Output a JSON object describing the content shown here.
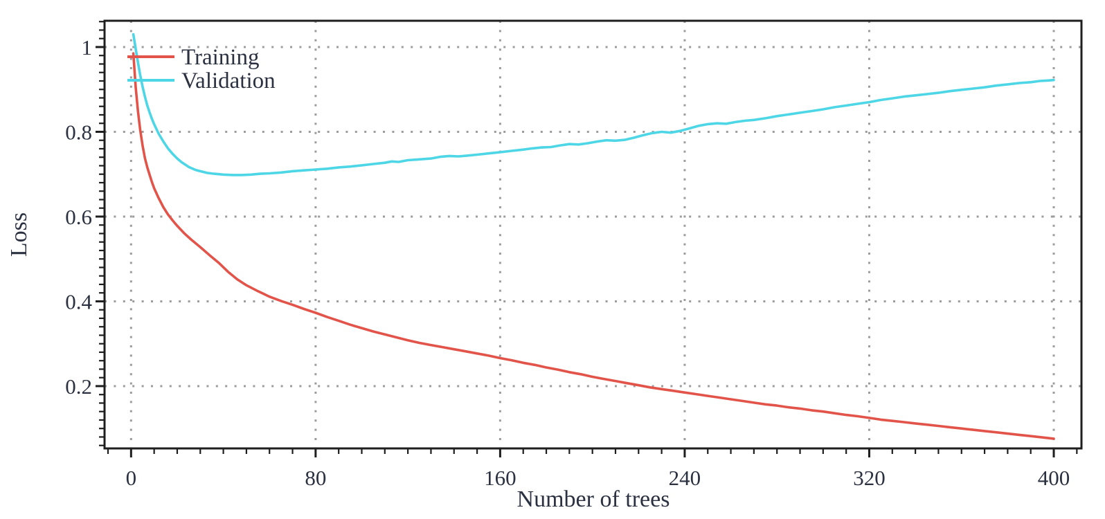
{
  "figure": {
    "background": "#ffffff",
    "frame_color": "#1e1e1e",
    "grid_color": "#9c9c9c",
    "text_color": "#2b3140"
  },
  "chart_data": {
    "type": "line",
    "title": "",
    "xlabel": "Number of trees",
    "ylabel": "Loss",
    "xlim": [
      -11.5,
      412
    ],
    "ylim": [
      0.053,
      1.062
    ],
    "x_axis": {
      "major_ticks": [
        0,
        80,
        160,
        240,
        320,
        400
      ],
      "tick_labels": [
        "0",
        "80",
        "160",
        "240",
        "320",
        "400"
      ],
      "minor_tick_step": 10
    },
    "y_axis": {
      "major_ticks": [
        0.2,
        0.4,
        0.6,
        0.8,
        1.0
      ],
      "tick_labels": [
        "0.2",
        "0.4",
        "0.6",
        "0.8",
        "1"
      ],
      "minor_tick_step": 0.02
    },
    "grid": {
      "style": "dotted",
      "on_major_ticks_only": true
    },
    "legend": {
      "position": "top-left-inside",
      "entries": [
        {
          "label": "Training",
          "color": "#e25449"
        },
        {
          "label": "Validation",
          "color": "#4dd6e6"
        }
      ]
    },
    "series": [
      {
        "name": "Training",
        "color": "#e25449",
        "points": [
          [
            1,
            0.985
          ],
          [
            2,
            0.905
          ],
          [
            3,
            0.848
          ],
          [
            4,
            0.803
          ],
          [
            5,
            0.767
          ],
          [
            6,
            0.738
          ],
          [
            7,
            0.717
          ],
          [
            8,
            0.699
          ],
          [
            9,
            0.682
          ],
          [
            10,
            0.667
          ],
          [
            12,
            0.643
          ],
          [
            14,
            0.622
          ],
          [
            16,
            0.605
          ],
          [
            18,
            0.591
          ],
          [
            20,
            0.578
          ],
          [
            23,
            0.561
          ],
          [
            26,
            0.546
          ],
          [
            30,
            0.528
          ],
          [
            34,
            0.509
          ],
          [
            38,
            0.491
          ],
          [
            42,
            0.47
          ],
          [
            46,
            0.452
          ],
          [
            50,
            0.438
          ],
          [
            55,
            0.424
          ],
          [
            60,
            0.411
          ],
          [
            65,
            0.401
          ],
          [
            70,
            0.392
          ],
          [
            75,
            0.382
          ],
          [
            80,
            0.373
          ],
          [
            85,
            0.363
          ],
          [
            90,
            0.354
          ],
          [
            95,
            0.345
          ],
          [
            100,
            0.337
          ],
          [
            105,
            0.329
          ],
          [
            110,
            0.322
          ],
          [
            115,
            0.315
          ],
          [
            120,
            0.308
          ],
          [
            125,
            0.302
          ],
          [
            130,
            0.297
          ],
          [
            135,
            0.292
          ],
          [
            140,
            0.287
          ],
          [
            145,
            0.282
          ],
          [
            150,
            0.277
          ],
          [
            155,
            0.272
          ],
          [
            160,
            0.266
          ],
          [
            165,
            0.261
          ],
          [
            170,
            0.255
          ],
          [
            175,
            0.25
          ],
          [
            180,
            0.244
          ],
          [
            185,
            0.239
          ],
          [
            190,
            0.233
          ],
          [
            195,
            0.228
          ],
          [
            200,
            0.222
          ],
          [
            205,
            0.217
          ],
          [
            210,
            0.212
          ],
          [
            215,
            0.207
          ],
          [
            220,
            0.202
          ],
          [
            225,
            0.197
          ],
          [
            230,
            0.193
          ],
          [
            235,
            0.189
          ],
          [
            240,
            0.185
          ],
          [
            245,
            0.181
          ],
          [
            250,
            0.177
          ],
          [
            255,
            0.173
          ],
          [
            260,
            0.169
          ],
          [
            265,
            0.165
          ],
          [
            270,
            0.161
          ],
          [
            275,
            0.157
          ],
          [
            280,
            0.154
          ],
          [
            285,
            0.15
          ],
          [
            290,
            0.147
          ],
          [
            295,
            0.143
          ],
          [
            300,
            0.14
          ],
          [
            305,
            0.136
          ],
          [
            310,
            0.132
          ],
          [
            315,
            0.129
          ],
          [
            320,
            0.125
          ],
          [
            325,
            0.121
          ],
          [
            330,
            0.118
          ],
          [
            335,
            0.115
          ],
          [
            340,
            0.112
          ],
          [
            345,
            0.109
          ],
          [
            350,
            0.106
          ],
          [
            355,
            0.103
          ],
          [
            360,
            0.1
          ],
          [
            365,
            0.097
          ],
          [
            370,
            0.094
          ],
          [
            375,
            0.091
          ],
          [
            380,
            0.088
          ],
          [
            385,
            0.085
          ],
          [
            390,
            0.082
          ],
          [
            395,
            0.079
          ],
          [
            400,
            0.076
          ]
        ]
      },
      {
        "name": "Validation",
        "color": "#4dd6e6",
        "points": [
          [
            1,
            1.03
          ],
          [
            2,
            0.996
          ],
          [
            3,
            0.963
          ],
          [
            4,
            0.933
          ],
          [
            5,
            0.906
          ],
          [
            6,
            0.883
          ],
          [
            7,
            0.863
          ],
          [
            8,
            0.846
          ],
          [
            9,
            0.831
          ],
          [
            10,
            0.818
          ],
          [
            12,
            0.795
          ],
          [
            14,
            0.777
          ],
          [
            16,
            0.761
          ],
          [
            18,
            0.748
          ],
          [
            20,
            0.737
          ],
          [
            22,
            0.728
          ],
          [
            25,
            0.717
          ],
          [
            28,
            0.71
          ],
          [
            30,
            0.707
          ],
          [
            33,
            0.703
          ],
          [
            36,
            0.701
          ],
          [
            40,
            0.699
          ],
          [
            44,
            0.698
          ],
          [
            48,
            0.698
          ],
          [
            52,
            0.699
          ],
          [
            56,
            0.701
          ],
          [
            60,
            0.702
          ],
          [
            65,
            0.704
          ],
          [
            70,
            0.707
          ],
          [
            75,
            0.709
          ],
          [
            80,
            0.711
          ],
          [
            85,
            0.713
          ],
          [
            90,
            0.716
          ],
          [
            95,
            0.718
          ],
          [
            100,
            0.721
          ],
          [
            105,
            0.724
          ],
          [
            110,
            0.727
          ],
          [
            113,
            0.73
          ],
          [
            116,
            0.729
          ],
          [
            120,
            0.733
          ],
          [
            125,
            0.735
          ],
          [
            130,
            0.737
          ],
          [
            134,
            0.741
          ],
          [
            138,
            0.743
          ],
          [
            142,
            0.742
          ],
          [
            146,
            0.744
          ],
          [
            150,
            0.746
          ],
          [
            155,
            0.749
          ],
          [
            160,
            0.752
          ],
          [
            165,
            0.755
          ],
          [
            170,
            0.758
          ],
          [
            174,
            0.761
          ],
          [
            178,
            0.763
          ],
          [
            182,
            0.764
          ],
          [
            186,
            0.768
          ],
          [
            190,
            0.771
          ],
          [
            194,
            0.77
          ],
          [
            198,
            0.773
          ],
          [
            202,
            0.777
          ],
          [
            206,
            0.78
          ],
          [
            210,
            0.779
          ],
          [
            214,
            0.781
          ],
          [
            218,
            0.786
          ],
          [
            222,
            0.792
          ],
          [
            226,
            0.797
          ],
          [
            230,
            0.8
          ],
          [
            234,
            0.798
          ],
          [
            238,
            0.802
          ],
          [
            242,
            0.808
          ],
          [
            246,
            0.814
          ],
          [
            250,
            0.818
          ],
          [
            254,
            0.82
          ],
          [
            258,
            0.819
          ],
          [
            262,
            0.823
          ],
          [
            266,
            0.826
          ],
          [
            270,
            0.828
          ],
          [
            275,
            0.832
          ],
          [
            280,
            0.837
          ],
          [
            285,
            0.841
          ],
          [
            290,
            0.845
          ],
          [
            295,
            0.849
          ],
          [
            300,
            0.853
          ],
          [
            305,
            0.858
          ],
          [
            310,
            0.862
          ],
          [
            315,
            0.866
          ],
          [
            320,
            0.87
          ],
          [
            325,
            0.875
          ],
          [
            330,
            0.879
          ],
          [
            335,
            0.883
          ],
          [
            340,
            0.886
          ],
          [
            345,
            0.889
          ],
          [
            350,
            0.892
          ],
          [
            355,
            0.896
          ],
          [
            360,
            0.899
          ],
          [
            365,
            0.902
          ],
          [
            370,
            0.905
          ],
          [
            375,
            0.909
          ],
          [
            380,
            0.912
          ],
          [
            385,
            0.915
          ],
          [
            390,
            0.917
          ],
          [
            394,
            0.92
          ],
          [
            397,
            0.921
          ],
          [
            400,
            0.922
          ]
        ]
      }
    ]
  }
}
